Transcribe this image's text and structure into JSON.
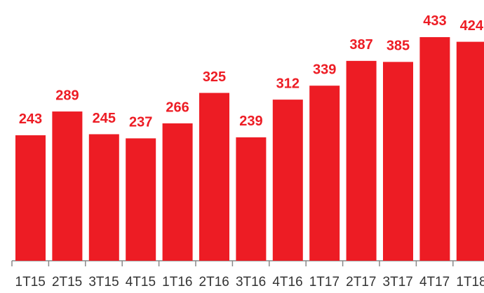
{
  "chart_data": {
    "type": "bar",
    "categories": [
      "1T15",
      "2T15",
      "3T15",
      "4T15",
      "1T16",
      "2T16",
      "3T16",
      "4T16",
      "1T17",
      "2T17",
      "3T17",
      "4T17",
      "1T18"
    ],
    "values": [
      243,
      289,
      245,
      237,
      266,
      325,
      239,
      312,
      339,
      387,
      385,
      433,
      424
    ],
    "color": "#ed1c24",
    "ylim": [
      0,
      500
    ]
  }
}
